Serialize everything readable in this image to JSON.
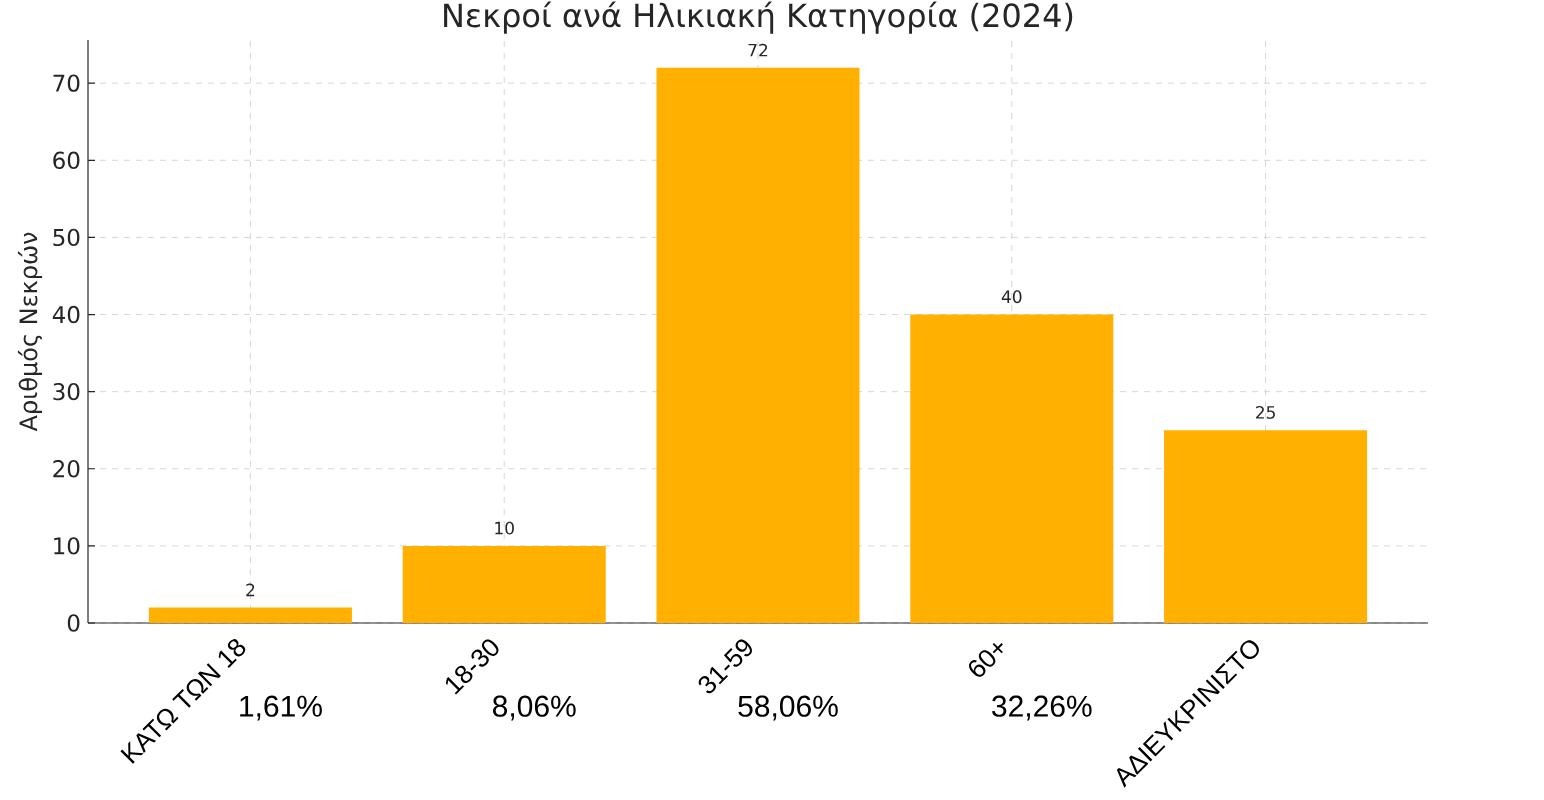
{
  "chart_data": {
    "type": "bar",
    "title": "Νεκροί ανά Ηλικιακή Κατηγορία (2024)",
    "ylabel": "Αριθμός Νεκρών",
    "categories": [
      "ΚΑΤΩ ΤΩΝ 18",
      "18-30",
      "31-59",
      "60+",
      "ΑΔΙΕΥΚΡΙΝΙΣΤΟ"
    ],
    "values": [
      2,
      10,
      72,
      40,
      25
    ],
    "color": "#ffb000",
    "ylim": [
      0,
      75.6
    ],
    "yticks": [
      0,
      10,
      20,
      30,
      40,
      50,
      60,
      70
    ],
    "grid": true,
    "data_labels": true,
    "annotations": [
      "1,61%",
      "8,06%",
      "58,06%",
      "32,26%"
    ]
  }
}
